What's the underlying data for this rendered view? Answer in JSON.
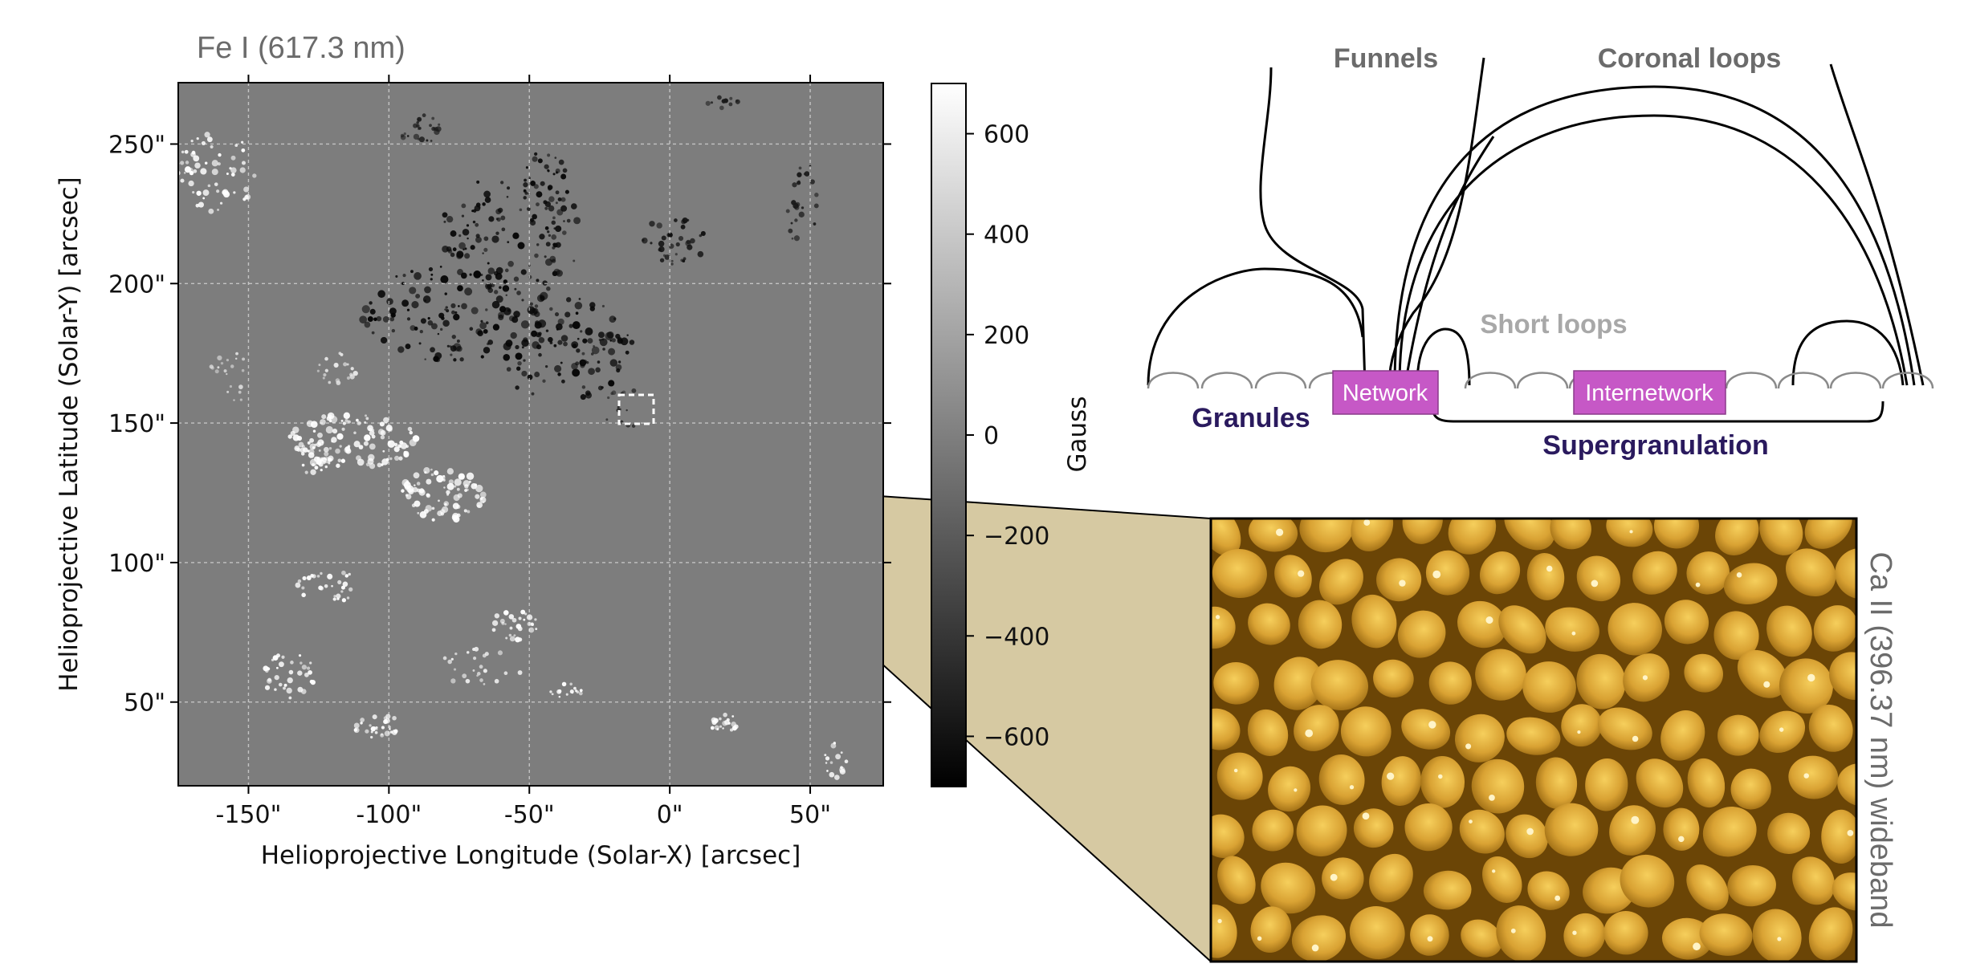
{
  "map": {
    "title": "Fe I (617.3 nm)",
    "xlabel": "Helioprojective Longitude (Solar-X) [arcsec]",
    "ylabel": "Helioprojective Latitude (Solar-Y) [arcsec]",
    "xticks": [
      {
        "value": -150,
        "label": "-150\""
      },
      {
        "value": -100,
        "label": "-100\""
      },
      {
        "value": -50,
        "label": "-50\""
      },
      {
        "value": 0,
        "label": "0\""
      },
      {
        "value": 50,
        "label": "50\""
      }
    ],
    "yticks": [
      {
        "value": 50,
        "label": "50\""
      },
      {
        "value": 100,
        "label": "100\""
      },
      {
        "value": 150,
        "label": "150\""
      },
      {
        "value": 200,
        "label": "200\""
      },
      {
        "value": 250,
        "label": "250\""
      }
    ],
    "xlim": [
      -175,
      76
    ],
    "ylim": [
      20,
      272
    ],
    "grid": true
  },
  "colorbar": {
    "label": "Gauss",
    "ticks": [
      {
        "value": 600,
        "label": "600"
      },
      {
        "value": 400,
        "label": "400"
      },
      {
        "value": 200,
        "label": "200"
      },
      {
        "value": 0,
        "label": "0"
      },
      {
        "value": -200,
        "label": "−200"
      },
      {
        "value": -400,
        "label": "−400"
      },
      {
        "value": -600,
        "label": "−600"
      }
    ],
    "range": [
      -700,
      700
    ]
  },
  "inset": {
    "label": "Ca II (396.37 nm) wideband"
  },
  "schematic": {
    "funnels": "Funnels",
    "coronal_loops": "Coronal loops",
    "short_loops": "Short loops",
    "network": "Network",
    "internetwork": "Internetwork",
    "granules": "Granules",
    "supergranulation": "Supergranulation"
  },
  "colors": {
    "magenta": "#c658c6",
    "dark_navy": "#2a1a5e",
    "gray_text": "#6b6b6b",
    "light_gray": "#a8a8a8",
    "gold": "#c8961f"
  }
}
